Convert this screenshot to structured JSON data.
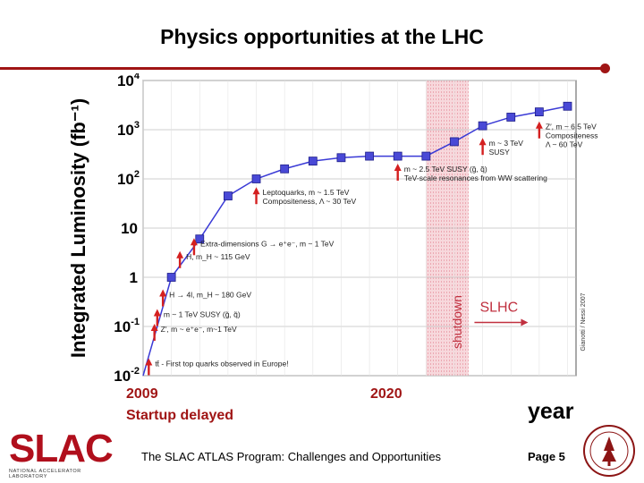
{
  "slide": {
    "title": "Physics opportunities at the LHC",
    "footer": "The SLAC ATLAS Program: Challenges and Opportunities",
    "page": "Page 5",
    "x_axis_word": "year",
    "year_start": "2009",
    "year_start_note": "Startup delayed",
    "year_mid": "2020",
    "logo_text": "SLAC",
    "logo_subtext": "NATIONAL ACCELERATOR LABORATORY",
    "accent_color": "#a01515"
  },
  "chart_data": {
    "type": "line",
    "ylabel": "Integrated Luminosity (fb⁻¹)",
    "xlabel": "year",
    "y_scale": "log",
    "ylim": [
      0.01,
      10000
    ],
    "y_ticks": [
      {
        "value": 10000,
        "base": "10",
        "exp": "4"
      },
      {
        "value": 1000,
        "base": "10",
        "exp": "3"
      },
      {
        "value": 100,
        "base": "10",
        "exp": "2"
      },
      {
        "value": 10,
        "base": "10",
        "exp": ""
      },
      {
        "value": 1,
        "base": "1",
        "exp": ""
      },
      {
        "value": 0.1,
        "base": "10",
        "exp": "-1"
      },
      {
        "value": 0.01,
        "base": "10",
        "exp": "-2"
      }
    ],
    "grid": true,
    "x": [
      2009,
      2010,
      2011,
      2012,
      2013,
      2014,
      2015,
      2016,
      2017,
      2018,
      2019,
      2020,
      2021,
      2022,
      2023,
      2024
    ],
    "values": [
      0.01,
      1,
      6,
      45,
      100,
      160,
      230,
      270,
      290,
      290,
      290,
      570,
      1200,
      1800,
      2300,
      3000
    ],
    "shutdown_label": "shutdown",
    "shutdown_range": [
      2019,
      2020.5
    ],
    "slhc_label": "SLHC",
    "credit": "Gianotti / Nessi 2007",
    "annotations": [
      {
        "lines": [
          "tt̄ - First top quarks observed in Europe!"
        ],
        "x": 2009.2,
        "y": 0.02
      },
      {
        "lines": [
          "Z′, m ~ e⁺e⁻, m~1 TeV"
        ],
        "x": 2009.4,
        "y": 0.1
      },
      {
        "lines": [
          "m ~ 1 TeV SUSY (g̃, q̃)"
        ],
        "x": 2009.5,
        "y": 0.2
      },
      {
        "lines": [
          "H → 4l, m_H ~ 180 GeV"
        ],
        "x": 2009.7,
        "y": 0.5
      },
      {
        "lines": [
          "H, m_H ~ 115 GeV"
        ],
        "x": 2010.3,
        "y": 3
      },
      {
        "lines": [
          "Extra-dimensions G → e⁺e⁻, m ~ 1 TeV"
        ],
        "x": 2010.8,
        "y": 5.5
      },
      {
        "lines": [
          "Leptoquarks, m ~ 1.5 TeV",
          "Compositeness, Λ ~ 30 TeV"
        ],
        "x": 2013,
        "y": 60
      },
      {
        "lines": [
          "m ~ 2.5 TeV SUSY (g̃, q̃)",
          "TeV-scale resonances from WW scattering"
        ],
        "x": 2018,
        "y": 180
      },
      {
        "lines": [
          "m ~ 3 TeV",
          "SUSY"
        ],
        "x": 2021,
        "y": 600
      },
      {
        "lines": [
          "Z′, m ~ 6.5 TeV",
          "Compositeness",
          "Λ ~ 60 TeV"
        ],
        "x": 2023,
        "y": 1300
      }
    ]
  }
}
